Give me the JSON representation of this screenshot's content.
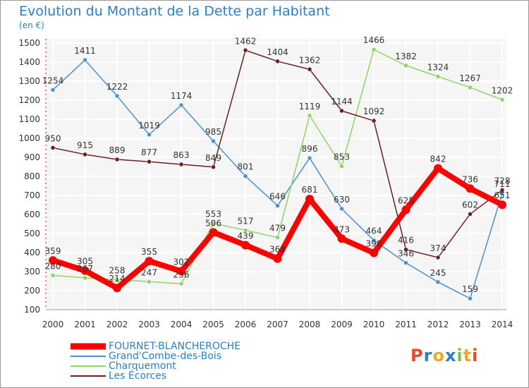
{
  "header": {
    "title": "Evolution du Montant de la Dette par Habitant",
    "unit": "(en €)"
  },
  "logo": {
    "letters": [
      "P",
      "r",
      "o",
      "x",
      "i",
      "t",
      "i"
    ],
    "colors": [
      "#e8492c",
      "#2c7fc4",
      "#f5a623",
      "#2c7fc4",
      "#7cc242",
      "#f5a623",
      "#e8492c"
    ]
  },
  "chart_data": {
    "type": "line",
    "title": "Evolution du Montant de la Dette par Habitant",
    "ylabel": "(en €)",
    "xlabel": "",
    "x": [
      "2000",
      "2001",
      "2002",
      "2003",
      "2004",
      "2005",
      "2006",
      "2007",
      "2008",
      "2009",
      "2010",
      "2011",
      "2012",
      "2013",
      "2014"
    ],
    "ylim": [
      100,
      1500
    ],
    "yticks": [
      100,
      200,
      300,
      400,
      500,
      600,
      700,
      800,
      900,
      1000,
      1100,
      1200,
      1300,
      1400,
      1500
    ],
    "grid": true,
    "legend": "bottom-left",
    "series": [
      {
        "name": "FOURNET-BLANCHEROCHE",
        "color": "#ff0000",
        "values": [
          359,
          305,
          214,
          355,
          302,
          506,
          439,
          368,
          681,
          473,
          398,
          625,
          842,
          736,
          651
        ],
        "labels": [
          "359",
          "305",
          "214",
          "355",
          "302",
          "506",
          "439",
          "368",
          "681",
          "473",
          "398",
          "625",
          "842",
          "736",
          "651"
        ]
      },
      {
        "name": "Grand'Combe-des-Bois",
        "color": "#4d8fd1",
        "values": [
          1254,
          1411,
          1222,
          1019,
          1174,
          985,
          801,
          646,
          896,
          630,
          464,
          346,
          245,
          159,
          711
        ],
        "labels": [
          "1254",
          "1411",
          "1222",
          "1019",
          "1174",
          "985",
          "801",
          "646",
          "896",
          "630",
          "464",
          "346",
          "245",
          "159",
          "711"
        ]
      },
      {
        "name": "Charquemont",
        "color": "#8fd464",
        "values": [
          280,
          267,
          258,
          247,
          236,
          553,
          517,
          479,
          1119,
          853,
          1466,
          1382,
          1324,
          1267,
          1202
        ],
        "labels": [
          "280",
          "267",
          "258",
          "247",
          "236",
          "553",
          "517",
          "479",
          "1119",
          "853",
          "1466",
          "1382",
          "1324",
          "1267",
          "1202"
        ]
      },
      {
        "name": "Les Écorces",
        "color": "#6d1f1f",
        "values": [
          950,
          915,
          889,
          877,
          863,
          849,
          1462,
          1404,
          1362,
          1144,
          1092,
          416,
          374,
          602,
          728
        ],
        "labels": [
          "950",
          "915",
          "889",
          "877",
          "863",
          "849",
          "1462",
          "1404",
          "1362",
          "1144",
          "1092",
          "416",
          "374",
          "602",
          "728"
        ]
      }
    ]
  }
}
